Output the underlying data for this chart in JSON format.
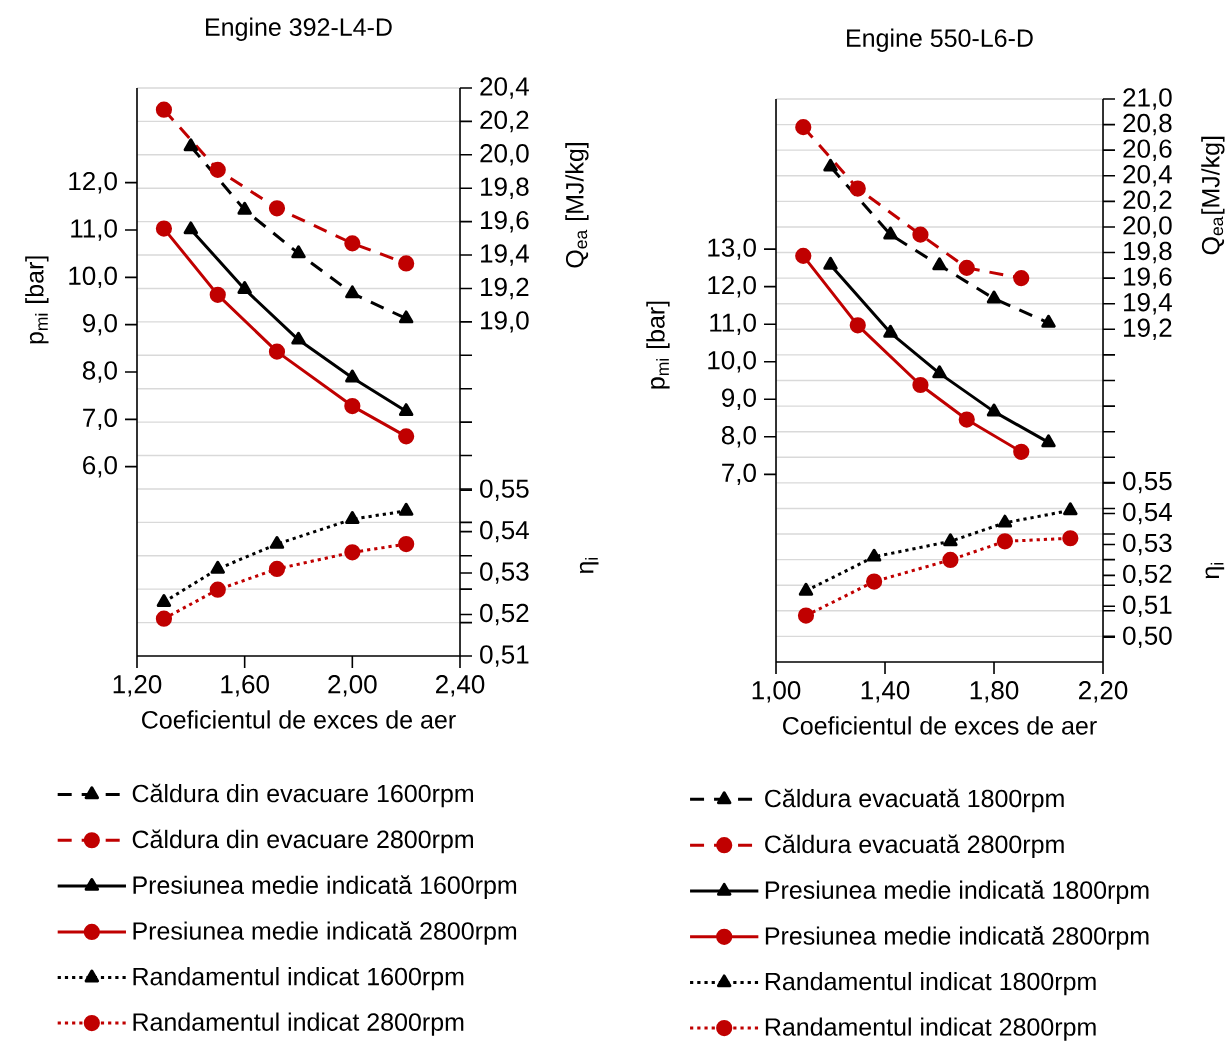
{
  "chart_data": [
    {
      "type": "line",
      "title": "Engine 392-L4-D",
      "xlabel": "Coeficientul de exces de aer",
      "ylabel": "p$_{mi}$ [bar]",
      "y2label": "Q$_{ea}$ [MJ/kg]",
      "y3label": "η$_{i}$",
      "xlim": [
        1.2,
        2.4
      ],
      "xticks": [
        {
          "value": 1.2,
          "label": "1,20"
        },
        {
          "value": 1.6,
          "label": "1,60"
        },
        {
          "value": 2.0,
          "label": "2,00"
        },
        {
          "value": 2.4,
          "label": "2,40"
        }
      ],
      "ylim": [
        2,
        14
      ],
      "yticks": [
        {
          "value": 6,
          "label": "6,0"
        },
        {
          "value": 7,
          "label": "7,0"
        },
        {
          "value": 8,
          "label": "8,0"
        },
        {
          "value": 9,
          "label": "9,0"
        },
        {
          "value": 10,
          "label": "10,0"
        },
        {
          "value": 11,
          "label": "11,0"
        },
        {
          "value": 12,
          "label": "12,0"
        }
      ],
      "y2lim": [
        17.0,
        20.4
      ],
      "y2ticks": [
        {
          "value": 17.2,
          "label": null
        },
        {
          "value": 17.4,
          "label": null
        },
        {
          "value": 17.6,
          "label": null
        },
        {
          "value": 17.8,
          "label": null
        },
        {
          "value": 18.0,
          "label": null
        },
        {
          "value": 18.2,
          "label": null
        },
        {
          "value": 18.4,
          "label": null
        },
        {
          "value": 18.6,
          "label": null
        },
        {
          "value": 18.8,
          "label": null
        },
        {
          "value": 19.0,
          "label": "19,0"
        },
        {
          "value": 19.2,
          "label": "19,2"
        },
        {
          "value": 19.4,
          "label": "19,4"
        },
        {
          "value": 19.6,
          "label": "19,6"
        },
        {
          "value": 19.8,
          "label": "19,8"
        },
        {
          "value": 20.0,
          "label": "20,0"
        },
        {
          "value": 20.2,
          "label": "20,2"
        },
        {
          "value": 20.4,
          "label": "20,4"
        }
      ],
      "y3lim": [
        0.51,
        0.647
      ],
      "y3ticks": [
        {
          "value": 0.51,
          "label": "0,51"
        },
        {
          "value": 0.52,
          "label": "0,52"
        },
        {
          "value": 0.53,
          "label": "0,53"
        },
        {
          "value": 0.54,
          "label": "0,54"
        },
        {
          "value": 0.55,
          "label": "0,55"
        }
      ],
      "grid": "y2",
      "legend": "bottom",
      "series": [
        {
          "name": "Căldura din evacuare 1600rpm",
          "color": "#000000",
          "axis": "y2",
          "line_style": "dashed",
          "marker": "triangle",
          "x": [
            1.4,
            1.6,
            1.8,
            2.0,
            2.2
          ],
          "values": [
            20.05,
            19.67,
            19.41,
            19.17,
            19.02
          ]
        },
        {
          "name": "Căldura din evacuare 2800rpm",
          "color": "#c00000",
          "axis": "y2",
          "line_style": "dashed",
          "marker": "circle",
          "x": [
            1.3,
            1.5,
            1.72,
            2.0,
            2.2
          ],
          "values": [
            20.27,
            19.91,
            19.68,
            19.47,
            19.35
          ]
        },
        {
          "name": "Presiunea medie indicată 1600rpm",
          "color": "#000000",
          "axis": "y",
          "line_style": "solid",
          "marker": "triangle",
          "x": [
            1.4,
            1.6,
            1.8,
            2.0,
            2.2
          ],
          "values": [
            11.01,
            9.75,
            8.68,
            7.88,
            7.17
          ]
        },
        {
          "name": "Presiunea medie indicată 2800rpm",
          "color": "#c00000",
          "axis": "y",
          "line_style": "solid",
          "marker": "circle",
          "x": [
            1.3,
            1.5,
            1.72,
            2.0,
            2.2
          ],
          "values": [
            11.03,
            9.63,
            8.43,
            7.28,
            6.64
          ]
        },
        {
          "name": "Randamentul indicat 1600rpm",
          "color": "#000000",
          "axis": "y3",
          "line_style": "dotted",
          "marker": "triangle",
          "x": [
            1.3,
            1.5,
            1.72,
            2.0,
            2.2
          ],
          "values": [
            0.523,
            0.531,
            0.537,
            0.543,
            0.545
          ]
        },
        {
          "name": "Randamentul indicat 2800rpm",
          "color": "#c00000",
          "axis": "y3",
          "line_style": "dotted",
          "marker": "circle",
          "x": [
            1.3,
            1.5,
            1.72,
            2.0,
            2.2
          ],
          "values": [
            0.519,
            0.526,
            0.531,
            0.535,
            0.537
          ]
        }
      ]
    },
    {
      "type": "line",
      "title": "Engine 550-L6-D",
      "xlabel": "Coeficientul de exces de aer",
      "ylabel": "p$_{mi}$ [bar]",
      "y2label": "Q$_{ea}$[MJ/kg]",
      "y3label": "η$_{i}$",
      "xlim": [
        1.0,
        2.2
      ],
      "xticks": [
        {
          "value": 1.0,
          "label": "1,00"
        },
        {
          "value": 1.4,
          "label": "1,40"
        },
        {
          "value": 1.8,
          "label": "1,80"
        },
        {
          "value": 2.2,
          "label": "2,20"
        }
      ],
      "ylim": [
        2,
        17
      ],
      "yticks": [
        {
          "value": 7,
          "label": "7,0"
        },
        {
          "value": 8,
          "label": "8,0"
        },
        {
          "value": 9,
          "label": "9,0"
        },
        {
          "value": 10,
          "label": "10,0"
        },
        {
          "value": 11,
          "label": "11,0"
        },
        {
          "value": 12,
          "label": "12,0"
        },
        {
          "value": 13,
          "label": "13,0"
        }
      ],
      "y2lim": [
        16.6,
        21.0
      ],
      "y2ticks": [
        {
          "value": 16.8,
          "label": null
        },
        {
          "value": 17.0,
          "label": null
        },
        {
          "value": 17.2,
          "label": null
        },
        {
          "value": 17.4,
          "label": null
        },
        {
          "value": 17.6,
          "label": null
        },
        {
          "value": 17.8,
          "label": null
        },
        {
          "value": 18.0,
          "label": null
        },
        {
          "value": 18.2,
          "label": null
        },
        {
          "value": 18.4,
          "label": null
        },
        {
          "value": 18.6,
          "label": null
        },
        {
          "value": 18.8,
          "label": null
        },
        {
          "value": 19.0,
          "label": null
        },
        {
          "value": 19.2,
          "label": "19,2"
        },
        {
          "value": 19.4,
          "label": "19,4"
        },
        {
          "value": 19.6,
          "label": "19,6"
        },
        {
          "value": 19.8,
          "label": "19,8"
        },
        {
          "value": 20.0,
          "label": "20,0"
        },
        {
          "value": 20.2,
          "label": "20,2"
        },
        {
          "value": 20.4,
          "label": "20,4"
        },
        {
          "value": 20.6,
          "label": "20,6"
        },
        {
          "value": 20.8,
          "label": "20,8"
        },
        {
          "value": 21.0,
          "label": "21,0"
        }
      ],
      "y3lim": [
        0.492,
        0.674
      ],
      "y3ticks": [
        {
          "value": 0.5,
          "label": "0,50"
        },
        {
          "value": 0.51,
          "label": "0,51"
        },
        {
          "value": 0.52,
          "label": "0,52"
        },
        {
          "value": 0.53,
          "label": "0,53"
        },
        {
          "value": 0.54,
          "label": "0,54"
        },
        {
          "value": 0.55,
          "label": "0,55"
        }
      ],
      "grid": "y2",
      "legend": "bottom",
      "series": [
        {
          "name": "Căldura evacuată 1800rpm",
          "color": "#000000",
          "axis": "y2",
          "line_style": "dashed",
          "marker": "triangle",
          "x": [
            1.2,
            1.42,
            1.6,
            1.8,
            2.0
          ],
          "values": [
            20.47,
            19.94,
            19.7,
            19.44,
            19.25
          ]
        },
        {
          "name": "Căldura evacuată 2800rpm",
          "color": "#c00000",
          "axis": "y2",
          "line_style": "dashed",
          "marker": "circle",
          "x": [
            1.1,
            1.3,
            1.53,
            1.7,
            1.9
          ],
          "values": [
            20.78,
            20.3,
            19.94,
            19.68,
            19.6
          ]
        },
        {
          "name": "Presiunea medie indicată 1800rpm",
          "color": "#000000",
          "axis": "y",
          "line_style": "solid",
          "marker": "triangle",
          "x": [
            1.2,
            1.42,
            1.6,
            1.8,
            2.0
          ],
          "values": [
            12.58,
            10.77,
            9.69,
            8.67,
            7.85
          ]
        },
        {
          "name": "Presiunea medie indicată 2800rpm",
          "color": "#c00000",
          "axis": "y",
          "line_style": "solid",
          "marker": "circle",
          "x": [
            1.1,
            1.3,
            1.53,
            1.7,
            1.9
          ],
          "values": [
            12.82,
            10.97,
            9.38,
            8.46,
            7.6
          ]
        },
        {
          "name": "Randamentul indicat 1800rpm",
          "color": "#000000",
          "axis": "y3",
          "line_style": "dotted",
          "marker": "triangle",
          "x": [
            1.11,
            1.36,
            1.64,
            1.84,
            2.08
          ],
          "values": [
            0.515,
            0.526,
            0.531,
            0.537,
            0.541
          ]
        },
        {
          "name": "Randamentul indicat 2800rpm",
          "color": "#c00000",
          "axis": "y3",
          "line_style": "dotted",
          "marker": "circle",
          "x": [
            1.11,
            1.36,
            1.64,
            1.84,
            2.08
          ],
          "values": [
            0.507,
            0.518,
            0.525,
            0.531,
            0.532
          ]
        }
      ]
    }
  ]
}
